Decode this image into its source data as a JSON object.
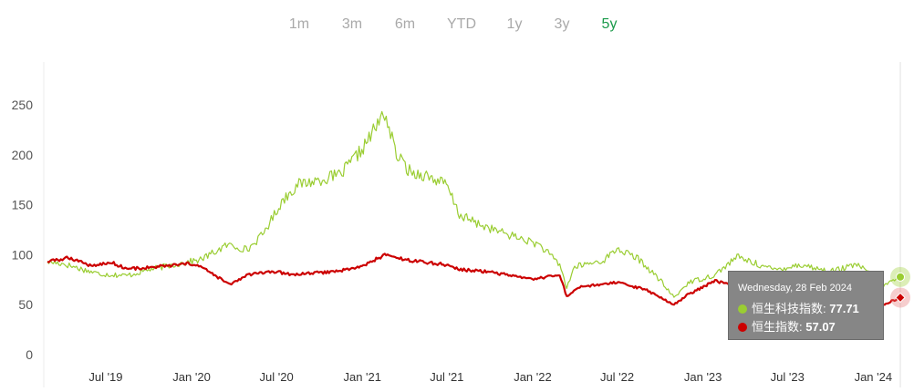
{
  "range_selector": {
    "buttons": [
      "1m",
      "3m",
      "6m",
      "YTD",
      "1y",
      "3y",
      "5y"
    ],
    "active": "5y"
  },
  "colors": {
    "hstech": "#9acd32",
    "hsi": "#cc0000",
    "active_range": "#1a9a4a",
    "tooltip_bg": "#868686"
  },
  "chart_data": {
    "type": "line",
    "y_ticks": [
      "0",
      "50",
      "100",
      "150",
      "200",
      "250"
    ],
    "ylim": [
      0,
      270
    ],
    "x_ticks": [
      "Jul '19",
      "Jan '20",
      "Jul '20",
      "Jan '21",
      "Jul '21",
      "Jan '22",
      "Jul '22",
      "Jan '23",
      "Jul '23",
      "Jan '24"
    ],
    "x_tick_dates": [
      "2019-07-01",
      "2020-01-01",
      "2020-07-01",
      "2021-01-01",
      "2021-07-01",
      "2022-01-01",
      "2022-07-01",
      "2023-01-01",
      "2023-07-01",
      "2024-01-01"
    ],
    "xlim": [
      "2019-02-26",
      "2024-02-28"
    ],
    "grid": false,
    "series": [
      {
        "name": "恒生科技指数",
        "x": [
          "2019-02-26",
          "2019-04-01",
          "2019-05-15",
          "2019-06-15",
          "2019-08-15",
          "2019-10-01",
          "2019-12-15",
          "2020-01-20",
          "2020-03-19",
          "2020-04-30",
          "2020-06-01",
          "2020-07-15",
          "2020-08-15",
          "2020-10-01",
          "2020-11-15",
          "2020-12-31",
          "2021-02-18",
          "2021-03-15",
          "2021-04-15",
          "2021-05-15",
          "2021-06-30",
          "2021-07-28",
          "2021-08-31",
          "2021-10-15",
          "2021-12-01",
          "2022-01-15",
          "2022-02-28",
          "2022-03-15",
          "2022-04-01",
          "2022-06-01",
          "2022-07-01",
          "2022-08-15",
          "2022-09-30",
          "2022-10-31",
          "2022-11-30",
          "2023-01-27",
          "2023-03-15",
          "2023-05-31",
          "2023-07-31",
          "2023-09-30",
          "2023-11-30",
          "2024-01-22",
          "2024-02-28"
        ],
        "values": [
          93,
          91,
          85,
          81,
          79,
          85,
          92,
          95,
          110,
          105,
          120,
          155,
          170,
          175,
          180,
          205,
          242,
          200,
          182,
          180,
          170,
          140,
          132,
          124,
          117,
          110,
          90,
          67,
          88,
          94,
          106,
          96,
          75,
          57,
          72,
          80,
          98,
          85,
          90,
          83,
          90,
          69,
          77.71
        ]
      },
      {
        "name": "恒生指数",
        "x": [
          "2019-02-26",
          "2019-04-15",
          "2019-05-31",
          "2019-07-15",
          "2019-08-15",
          "2019-10-01",
          "2019-12-31",
          "2020-01-20",
          "2020-03-23",
          "2020-05-01",
          "2020-06-30",
          "2020-08-01",
          "2020-10-31",
          "2020-12-31",
          "2021-02-18",
          "2021-03-31",
          "2021-06-30",
          "2021-07-28",
          "2021-09-30",
          "2021-12-31",
          "2022-02-28",
          "2022-03-15",
          "2022-04-15",
          "2022-06-30",
          "2022-08-31",
          "2022-10-31",
          "2022-11-30",
          "2023-01-27",
          "2023-03-15",
          "2023-05-31",
          "2023-08-31",
          "2023-10-31",
          "2023-12-31",
          "2024-01-22",
          "2024-02-28"
        ],
        "values": [
          93,
          97,
          89,
          92,
          86,
          87,
          91,
          88,
          70,
          80,
          83,
          80,
          83,
          88,
          100,
          95,
          90,
          85,
          83,
          75,
          80,
          58,
          68,
          72,
          65,
          50,
          60,
          74,
          68,
          65,
          62,
          58,
          58,
          50,
          57.07
        ]
      }
    ],
    "tooltip": {
      "date": "Wednesday, 28 Feb 2024",
      "rows": [
        {
          "series": "恒生科技指数",
          "value": "77.71"
        },
        {
          "series": "恒生指数",
          "value": "57.07"
        }
      ]
    }
  }
}
